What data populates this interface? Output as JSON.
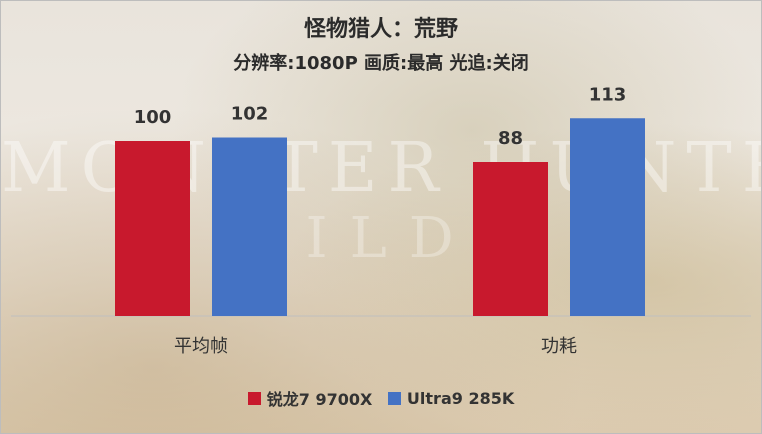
{
  "chart_data": {
    "type": "bar",
    "title": "怪物猎人：荒野",
    "subtitle": "分辨率:1080P  画质:最高 光追:关闭",
    "categories": [
      "平均帧",
      "功耗"
    ],
    "series": [
      {
        "name": "锐龙7 9700X",
        "values": [
          100,
          88
        ],
        "color": "#c8192d"
      },
      {
        "name": "Ultra9 285K",
        "values": [
          102,
          113
        ],
        "color": "#4472c4"
      }
    ],
    "ylim": [
      0,
      130
    ],
    "grid": false,
    "legend_position": "bottom"
  },
  "background": {
    "wordmark_line1": "MONSTER HUNTER",
    "wordmark_line2": "WILDS"
  }
}
